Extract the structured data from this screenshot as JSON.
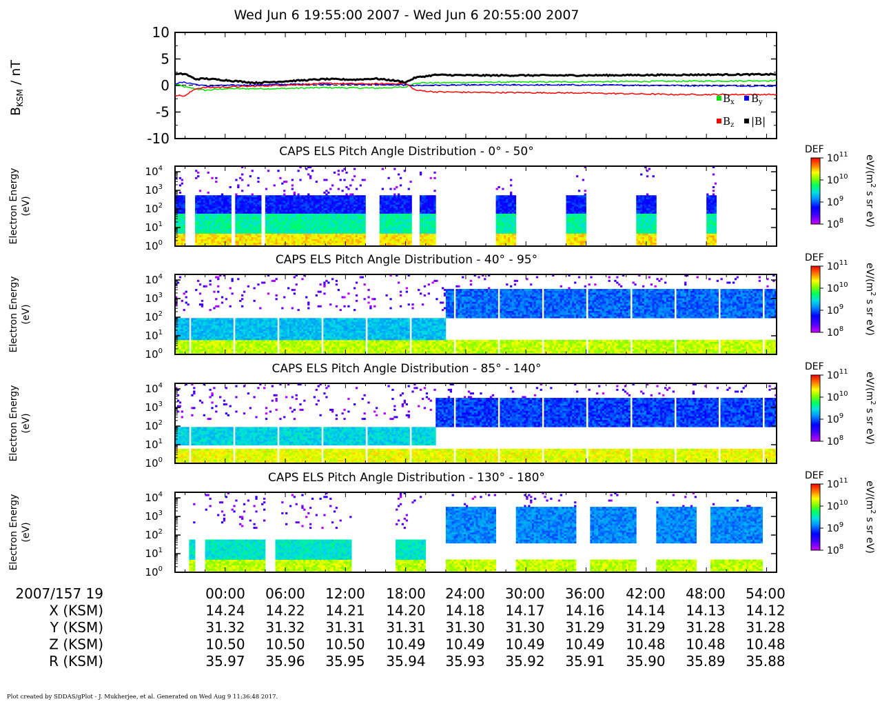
{
  "title": "Wed Jun 6 19:55:00 2007 - Wed Jun 6 20:55:00 2007",
  "footer": "Plot created by SDDAS/gPlot - J. Mukherjee, et al.  Generated on Wed Aug 9 11:36:48 2017.",
  "mag_panel": {
    "ylabel_main": "B",
    "ylabel_sub": "KSM",
    "ylabel_unit": " / nT",
    "yticks": [
      "10",
      "5",
      "0",
      "-5",
      "-10"
    ],
    "legend": [
      {
        "label": "B",
        "sub": "x",
        "color": "#00e000"
      },
      {
        "label": "B",
        "sub": "y",
        "color": "#0000ff"
      },
      {
        "label": "B",
        "sub": "z",
        "color": "#ff0000"
      },
      {
        "label": "|B|",
        "sub": "",
        "color": "#000000"
      }
    ]
  },
  "spec_panels": [
    {
      "title": "CAPS ELS Pitch Angle Distribution - 0° - 50°"
    },
    {
      "title": "CAPS ELS Pitch Angle Distribution - 40° - 95°"
    },
    {
      "title": "CAPS ELS Pitch Angle Distribution - 85° - 140°"
    },
    {
      "title": "CAPS ELS Pitch Angle Distribution - 130° - 180°"
    }
  ],
  "spec_common": {
    "ylabel_line1": "Electron Energy",
    "ylabel_line2": "(eV)",
    "yticks": [
      {
        "base": "10",
        "exp": "4"
      },
      {
        "base": "10",
        "exp": "3"
      },
      {
        "base": "10",
        "exp": "2"
      },
      {
        "base": "10",
        "exp": "1"
      },
      {
        "base": "10",
        "exp": "0"
      }
    ],
    "colorbar_label": "DEF",
    "colorbar_ticks": [
      {
        "base": "10",
        "exp": "11"
      },
      {
        "base": "10",
        "exp": "10"
      },
      {
        "base": "10",
        "exp": "9"
      },
      {
        "base": "10",
        "exp": "8"
      }
    ],
    "colorbar_unit_a": "eV/(m",
    "colorbar_unit_sup": "2",
    "colorbar_unit_b": " s sr eV)"
  },
  "ephemeris": {
    "rows": [
      {
        "label": "2007/157 19",
        "values": [
          "00:00",
          "06:00",
          "12:00",
          "18:00",
          "24:00",
          "30:00",
          "36:00",
          "42:00",
          "48:00",
          "54:00"
        ]
      },
      {
        "label": "X (KSM)",
        "values": [
          "14.24",
          "14.22",
          "14.21",
          "14.20",
          "14.18",
          "14.17",
          "14.16",
          "14.14",
          "14.13",
          "14.12"
        ]
      },
      {
        "label": "Y (KSM)",
        "values": [
          "31.32",
          "31.32",
          "31.31",
          "31.31",
          "31.30",
          "31.30",
          "31.29",
          "31.29",
          "31.28",
          "31.28"
        ]
      },
      {
        "label": "Z (KSM)",
        "values": [
          "10.50",
          "10.50",
          "10.50",
          "10.49",
          "10.49",
          "10.49",
          "10.49",
          "10.48",
          "10.48",
          "10.48"
        ]
      },
      {
        "label": "R (KSM)",
        "values": [
          "35.97",
          "35.96",
          "35.95",
          "35.94",
          "35.93",
          "35.92",
          "35.91",
          "35.90",
          "35.89",
          "35.88"
        ]
      }
    ]
  },
  "chart_data": [
    {
      "type": "line",
      "x_unit": "minutes after 19:55 UT",
      "xlim": [
        0,
        60
      ],
      "ylim": [
        -10,
        10
      ],
      "series": [
        {
          "name": "Bx",
          "color": "#00e000",
          "x": [
            0,
            1,
            3,
            5,
            10,
            15,
            20,
            23,
            24,
            26,
            30,
            40,
            50,
            60
          ],
          "y": [
            0.3,
            -0.3,
            -0.9,
            -0.6,
            -0.6,
            -0.4,
            -0.5,
            -0.3,
            0.5,
            0.5,
            0.6,
            0.7,
            0.8,
            0.9
          ]
        },
        {
          "name": "By",
          "color": "#0000ff",
          "x": [
            0,
            1,
            3,
            5,
            10,
            15,
            20,
            23,
            24,
            30,
            40,
            50,
            60
          ],
          "y": [
            0.4,
            0.6,
            -0.1,
            0.0,
            0.2,
            0.3,
            0.2,
            0.1,
            0.0,
            0.1,
            0.1,
            0.0,
            -0.1
          ]
        },
        {
          "name": "Bz",
          "color": "#ff0000",
          "x": [
            0,
            1,
            2,
            3,
            5,
            10,
            15,
            20,
            23,
            24,
            26,
            30,
            40,
            50,
            60
          ],
          "y": [
            -1.8,
            -2.0,
            -0.6,
            -0.4,
            -0.3,
            0.0,
            0.4,
            0.3,
            0.4,
            -0.9,
            -1.2,
            -1.3,
            -1.4,
            -1.7,
            -1.7
          ]
        },
        {
          "name": "|B|",
          "color": "#000000",
          "x": [
            0,
            1,
            2,
            3,
            5,
            8,
            10,
            15,
            18,
            20,
            22,
            23,
            24,
            26,
            30,
            40,
            50,
            60
          ],
          "y": [
            2.1,
            2.2,
            1.2,
            1.3,
            1.0,
            0.5,
            0.7,
            1.2,
            1.1,
            1.3,
            0.9,
            0.6,
            1.5,
            2.0,
            1.9,
            1.9,
            2.0,
            2.1
          ]
        }
      ]
    },
    {
      "type": "heatmap",
      "variable": "Differential energy flux (DEF)",
      "units": "eV/(m^2 s sr eV)",
      "energy_range_eV": [
        1,
        20000
      ],
      "color_range": [
        100000000.0,
        100000000000.0
      ],
      "panels": [
        {
          "pitch_angle": "0° - 50°",
          "coverage_minutes": [
            [
              0,
              1
            ],
            [
              2,
              5.5
            ],
            [
              6,
              8.5
            ],
            [
              9,
              19
            ],
            [
              20.5,
              23.5
            ],
            [
              24.5,
              26
            ],
            [
              32,
              34
            ],
            [
              39,
              41
            ],
            [
              46,
              48
            ],
            [
              53,
              54
            ]
          ],
          "features": [
            {
              "energy_eV": [
                1,
                5
              ],
              "def_log10": 10.4
            },
            {
              "energy_eV": [
                5,
                60
              ],
              "def_log10": 9.6
            },
            {
              "energy_eV": [
                60,
                500
              ],
              "def_log10": 8.8
            }
          ]
        },
        {
          "pitch_angle": "40° - 95°",
          "coverage_minutes": [
            [
              0,
              60
            ]
          ],
          "features": [
            {
              "energy_eV": [
                1,
                6
              ],
              "def_log10": 10.2
            },
            {
              "energy_eV": [
                5,
                100
              ],
              "def_log10": 9.3,
              "time_minutes": [
                0,
                27
              ]
            },
            {
              "energy_eV": [
                100,
                3000
              ],
              "def_log10": 9.0,
              "time_minutes": [
                27,
                60
              ]
            }
          ]
        },
        {
          "pitch_angle": "85° - 140°",
          "coverage_minutes": [
            [
              0,
              60
            ]
          ],
          "features": [
            {
              "energy_eV": [
                1,
                6
              ],
              "def_log10": 10.3
            },
            {
              "energy_eV": [
                10,
                100
              ],
              "def_log10": 9.4,
              "time_minutes": [
                0,
                26
              ]
            },
            {
              "energy_eV": [
                100,
                3000
              ],
              "def_log10": 8.9,
              "time_minutes": [
                26,
                60
              ]
            }
          ]
        },
        {
          "pitch_angle": "130° - 180°",
          "coverage_minutes": [
            [
              1.5,
              2
            ],
            [
              3,
              9
            ],
            [
              10,
              17.5
            ],
            [
              22,
              25
            ],
            [
              27,
              32
            ],
            [
              34,
              40
            ],
            [
              41.5,
              46
            ],
            [
              48,
              52
            ],
            [
              53.5,
              58.5
            ]
          ],
          "features": [
            {
              "energy_eV": [
                1,
                5
              ],
              "def_log10": 10.2
            },
            {
              "energy_eV": [
                5,
                60
              ],
              "def_log10": 9.5,
              "time_minutes": [
                0,
                26
              ]
            },
            {
              "energy_eV": [
                40,
                3000
              ],
              "def_log10": 9.1,
              "time_minutes": [
                26,
                60
              ]
            }
          ]
        }
      ]
    }
  ]
}
